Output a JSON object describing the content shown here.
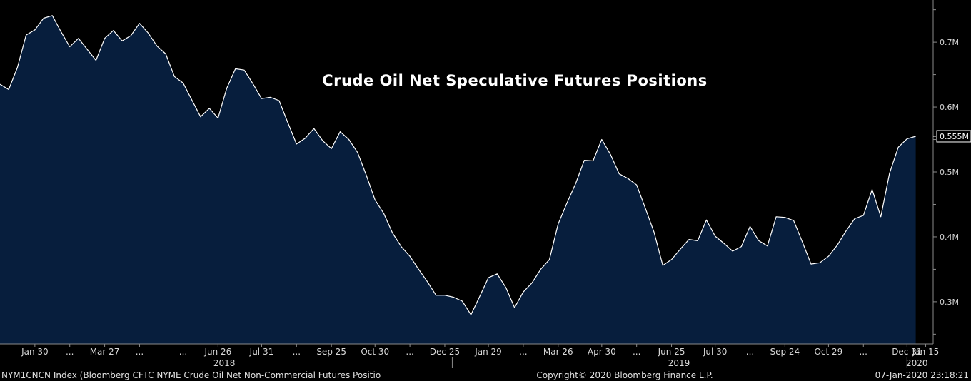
{
  "chart_data": {
    "type": "area",
    "title": "Crude Oil Net Speculative Futures Positions",
    "xlabel": "",
    "ylabel": "",
    "ylim": [
      0.235,
      0.765
    ],
    "y_ticks": [
      {
        "value": 0.3,
        "label": "0.3M"
      },
      {
        "value": 0.4,
        "label": "0.4M"
      },
      {
        "value": 0.5,
        "label": "0.5M"
      },
      {
        "value": 0.6,
        "label": "0.6M"
      },
      {
        "value": 0.7,
        "label": "0.7M"
      }
    ],
    "x_ticks": [
      {
        "date": "2018-01-30",
        "label": "Jan 30"
      },
      {
        "date": "2018-02-27",
        "label": "..."
      },
      {
        "date": "2018-03-27",
        "label": "Mar 27"
      },
      {
        "date": "2018-04-24",
        "label": "..."
      },
      {
        "date": "2018-05-29",
        "label": "..."
      },
      {
        "date": "2018-06-26",
        "label": "Jun 26"
      },
      {
        "date": "2018-07-31",
        "label": "Jul 31"
      },
      {
        "date": "2018-08-28",
        "label": "..."
      },
      {
        "date": "2018-09-25",
        "label": "Sep 25"
      },
      {
        "date": "2018-10-30",
        "label": "Oct 30"
      },
      {
        "date": "2018-11-27",
        "label": "..."
      },
      {
        "date": "2018-12-25",
        "label": "Dec 25"
      },
      {
        "date": "2019-01-29",
        "label": "Jan 29"
      },
      {
        "date": "2019-02-26",
        "label": "..."
      },
      {
        "date": "2019-03-26",
        "label": "Mar 26"
      },
      {
        "date": "2019-04-30",
        "label": "Apr 30"
      },
      {
        "date": "2019-05-28",
        "label": "..."
      },
      {
        "date": "2019-06-25",
        "label": "Jun 25"
      },
      {
        "date": "2019-07-30",
        "label": "Jul 30"
      },
      {
        "date": "2019-08-27",
        "label": "..."
      },
      {
        "date": "2019-09-24",
        "label": "Sep 24"
      },
      {
        "date": "2019-10-29",
        "label": "Oct 29"
      },
      {
        "date": "2019-11-26",
        "label": "..."
      },
      {
        "date": "2019-12-31",
        "label": "Dec 31"
      },
      {
        "date": "2020-01-15",
        "label": "Jan 15"
      }
    ],
    "x_range": [
      "2018-01-02",
      "2020-01-21"
    ],
    "years": [
      {
        "label": "2018",
        "date": "2018-07-01",
        "sep_date": "2018-12-31"
      },
      {
        "label": "2019",
        "date": "2019-07-01",
        "sep_date": "2019-12-31"
      },
      {
        "label": "2020",
        "date": "2020-01-08",
        "sep_date": null
      }
    ],
    "last_value_label": "0.555M",
    "colors": {
      "line": "#ffffff",
      "fill": "#071e3d",
      "background": "#000000",
      "axis": "#8a8a8a"
    },
    "series": [
      {
        "points": [
          [
            "2018-01-02",
            0.635
          ],
          [
            "2018-01-09",
            0.627
          ],
          [
            "2018-01-16",
            0.661
          ],
          [
            "2018-01-23",
            0.711
          ],
          [
            "2018-01-30",
            0.719
          ],
          [
            "2018-02-06",
            0.737
          ],
          [
            "2018-02-13",
            0.741
          ],
          [
            "2018-02-20",
            0.716
          ],
          [
            "2018-02-27",
            0.693
          ],
          [
            "2018-03-06",
            0.706
          ],
          [
            "2018-03-13",
            0.689
          ],
          [
            "2018-03-20",
            0.672
          ],
          [
            "2018-03-27",
            0.706
          ],
          [
            "2018-04-03",
            0.718
          ],
          [
            "2018-04-10",
            0.702
          ],
          [
            "2018-04-17",
            0.71
          ],
          [
            "2018-04-24",
            0.729
          ],
          [
            "2018-05-01",
            0.714
          ],
          [
            "2018-05-08",
            0.694
          ],
          [
            "2018-05-15",
            0.682
          ],
          [
            "2018-05-22",
            0.647
          ],
          [
            "2018-05-29",
            0.637
          ],
          [
            "2018-06-05",
            0.611
          ],
          [
            "2018-06-12",
            0.585
          ],
          [
            "2018-06-19",
            0.598
          ],
          [
            "2018-06-26",
            0.583
          ],
          [
            "2018-07-03",
            0.629
          ],
          [
            "2018-07-10",
            0.659
          ],
          [
            "2018-07-17",
            0.657
          ],
          [
            "2018-07-24",
            0.636
          ],
          [
            "2018-07-31",
            0.613
          ],
          [
            "2018-08-07",
            0.615
          ],
          [
            "2018-08-14",
            0.61
          ],
          [
            "2018-08-21",
            0.576
          ],
          [
            "2018-08-28",
            0.543
          ],
          [
            "2018-09-04",
            0.552
          ],
          [
            "2018-09-11",
            0.567
          ],
          [
            "2018-09-18",
            0.548
          ],
          [
            "2018-09-25",
            0.536
          ],
          [
            "2018-10-02",
            0.562
          ],
          [
            "2018-10-09",
            0.55
          ],
          [
            "2018-10-16",
            0.53
          ],
          [
            "2018-10-23",
            0.495
          ],
          [
            "2018-10-30",
            0.457
          ],
          [
            "2018-11-06",
            0.436
          ],
          [
            "2018-11-13",
            0.406
          ],
          [
            "2018-11-20",
            0.385
          ],
          [
            "2018-11-27",
            0.37
          ],
          [
            "2018-12-04",
            0.35
          ],
          [
            "2018-12-11",
            0.331
          ],
          [
            "2018-12-18",
            0.31
          ],
          [
            "2018-12-25",
            0.31
          ],
          [
            "2019-01-01",
            0.307
          ],
          [
            "2019-01-08",
            0.301
          ],
          [
            "2019-01-15",
            0.28
          ],
          [
            "2019-01-22",
            0.308
          ],
          [
            "2019-01-29",
            0.337
          ],
          [
            "2019-02-05",
            0.343
          ],
          [
            "2019-02-12",
            0.322
          ],
          [
            "2019-02-19",
            0.291
          ],
          [
            "2019-02-26",
            0.315
          ],
          [
            "2019-03-05",
            0.329
          ],
          [
            "2019-03-12",
            0.35
          ],
          [
            "2019-03-19",
            0.365
          ],
          [
            "2019-03-26",
            0.42
          ],
          [
            "2019-04-02",
            0.452
          ],
          [
            "2019-04-09",
            0.482
          ],
          [
            "2019-04-16",
            0.518
          ],
          [
            "2019-04-23",
            0.517
          ],
          [
            "2019-04-30",
            0.55
          ],
          [
            "2019-05-07",
            0.527
          ],
          [
            "2019-05-14",
            0.497
          ],
          [
            "2019-05-21",
            0.49
          ],
          [
            "2019-05-28",
            0.48
          ],
          [
            "2019-06-04",
            0.444
          ],
          [
            "2019-06-11",
            0.407
          ],
          [
            "2019-06-18",
            0.356
          ],
          [
            "2019-06-25",
            0.365
          ],
          [
            "2019-07-02",
            0.381
          ],
          [
            "2019-07-09",
            0.396
          ],
          [
            "2019-07-16",
            0.394
          ],
          [
            "2019-07-23",
            0.426
          ],
          [
            "2019-07-30",
            0.401
          ],
          [
            "2019-08-06",
            0.39
          ],
          [
            "2019-08-13",
            0.378
          ],
          [
            "2019-08-20",
            0.385
          ],
          [
            "2019-08-27",
            0.416
          ],
          [
            "2019-09-03",
            0.394
          ],
          [
            "2019-09-10",
            0.386
          ],
          [
            "2019-09-17",
            0.431
          ],
          [
            "2019-09-24",
            0.43
          ],
          [
            "2019-10-01",
            0.425
          ],
          [
            "2019-10-08",
            0.392
          ],
          [
            "2019-10-15",
            0.358
          ],
          [
            "2019-10-22",
            0.36
          ],
          [
            "2019-10-29",
            0.37
          ],
          [
            "2019-11-05",
            0.387
          ],
          [
            "2019-11-12",
            0.409
          ],
          [
            "2019-11-19",
            0.428
          ],
          [
            "2019-11-26",
            0.433
          ],
          [
            "2019-12-03",
            0.473
          ],
          [
            "2019-12-10",
            0.431
          ],
          [
            "2019-12-17",
            0.498
          ],
          [
            "2019-12-24",
            0.538
          ],
          [
            "2019-12-31",
            0.551
          ],
          [
            "2020-01-07",
            0.555
          ]
        ]
      }
    ]
  },
  "footer": {
    "left": "NYM1CNCN Index (Bloomberg CFTC NYME Crude Oil Net Non-Commercial Futures Positio",
    "center": "Copyright© 2020 Bloomberg Finance L.P.",
    "right": "07-Jan-2020 23:18:21"
  }
}
